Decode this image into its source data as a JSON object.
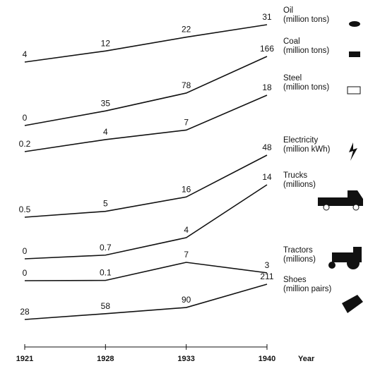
{
  "chart_data": {
    "type": "line",
    "categories": [
      "1921",
      "1928",
      "1933",
      "1940"
    ],
    "x_label": "Year",
    "color": "#111111",
    "series": [
      {
        "name": "Oil",
        "unit": "(million tons)",
        "values": [
          4,
          12,
          22,
          31
        ]
      },
      {
        "name": "Coal",
        "unit": "(million tons)",
        "values": [
          0,
          35,
          78,
          166
        ]
      },
      {
        "name": "Steel",
        "unit": "(million tons)",
        "values": [
          0.2,
          4,
          7,
          18
        ]
      },
      {
        "name": "Electricity",
        "unit": "(million kWh)",
        "values": [
          0.5,
          5,
          16,
          48
        ]
      },
      {
        "name": "Trucks",
        "unit": "(millions)",
        "values": [
          0,
          0.7,
          4,
          14
        ]
      },
      {
        "name": "Tractors",
        "unit": "(millions)",
        "values": [
          0,
          0.1,
          7,
          3
        ]
      },
      {
        "name": "Shoes",
        "unit": "(million pairs)",
        "values": [
          28,
          58,
          90,
          211
        ]
      }
    ]
  }
}
